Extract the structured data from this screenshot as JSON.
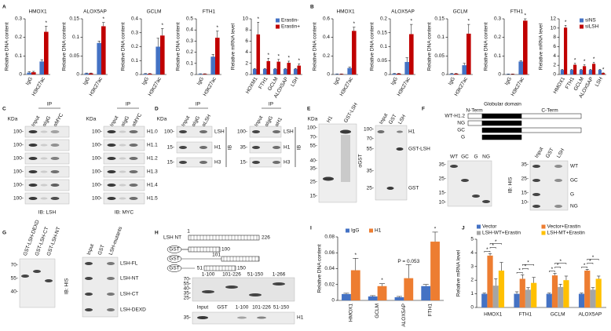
{
  "panel_letters": [
    "A",
    "B",
    "C",
    "D",
    "E",
    "F",
    "G",
    "H",
    "I",
    "J"
  ],
  "chart_data": [
    {
      "type": "bar",
      "title": "HMOX1",
      "ylabel": "Relative DNA content",
      "categories": [
        "IgG",
        "H3K27ac"
      ],
      "series": [
        {
          "color": "#4472c4",
          "values": [
            0.01,
            0.07
          ],
          "errors": [
            0.005,
            0.01
          ]
        },
        {
          "color": "#c00000",
          "values": [
            0.012,
            0.23
          ],
          "errors": [
            0.005,
            0.03
          ],
          "annotations": [
            null,
            "*"
          ]
        }
      ],
      "ylim": [
        0,
        0.3
      ],
      "yticks": [
        0,
        0.1,
        0.2,
        0.3
      ],
      "label_rotation": -60
    },
    {
      "type": "bar",
      "title": "ALOX5AP",
      "ylabel": "Relative DNA content",
      "categories": [
        "IgG",
        "H3K27ac"
      ],
      "series": [
        {
          "color": "#4472c4",
          "values": [
            0.003,
            0.085
          ],
          "errors": [
            0.001,
            0.005
          ]
        },
        {
          "color": "#c00000",
          "values": [
            0.003,
            0.13
          ],
          "errors": [
            0.001,
            0.01
          ],
          "annotations": [
            null,
            "*"
          ]
        }
      ],
      "ylim": [
        0,
        0.15
      ],
      "yticks": [
        0,
        0.05,
        0.1,
        0.15
      ],
      "label_rotation": -60
    },
    {
      "type": "bar",
      "title": "GCLM",
      "ylabel": "Relative DNA content",
      "categories": [
        "IgG",
        "H3K27ac"
      ],
      "series": [
        {
          "color": "#4472c4",
          "values": [
            0.005,
            0.2
          ],
          "errors": [
            0.002,
            0.06
          ]
        },
        {
          "color": "#c00000",
          "values": [
            0.005,
            0.28
          ],
          "errors": [
            0.002,
            0.05
          ],
          "annotations": [
            null,
            "*"
          ]
        }
      ],
      "ylim": [
        0,
        0.4
      ],
      "yticks": [
        0,
        0.1,
        0.2,
        0.3,
        0.4
      ],
      "label_rotation": -60
    },
    {
      "type": "bar",
      "title": "FTH1",
      "ylabel": "Relative DNA content",
      "categories": [
        "IgG",
        "H3K27ac"
      ],
      "series": [
        {
          "color": "#4472c4",
          "values": [
            0.005,
            0.16
          ],
          "errors": [
            0.002,
            0.02
          ]
        },
        {
          "color": "#c00000",
          "values": [
            0.005,
            0.33
          ],
          "errors": [
            0.002,
            0.06
          ],
          "annotations": [
            null,
            "*"
          ]
        }
      ],
      "ylim": [
        0,
        0.5
      ],
      "yticks": [
        0,
        0.1,
        0.2,
        0.3,
        0.4,
        0.5
      ],
      "label_rotation": -60
    },
    {
      "type": "bar",
      "ylabel": "Relative mRNA level",
      "categories": [
        "HOXM1",
        "FTH1",
        "GCLM",
        "ALOX5AP",
        "LSH"
      ],
      "series": [
        {
          "name": "Erastin-",
          "color": "#4472c4",
          "values": [
            1,
            1,
            1,
            1,
            1
          ],
          "errors": [
            0.1,
            0.1,
            0.1,
            0.1,
            0.1
          ]
        },
        {
          "name": "Erastin+",
          "color": "#c00000",
          "values": [
            7.2,
            2.4,
            2.3,
            2.1,
            1.6
          ],
          "errors": [
            2.2,
            0.5,
            0.4,
            0.3,
            0.3
          ],
          "annotations": [
            "*",
            "*",
            "*",
            "*",
            "*"
          ]
        }
      ],
      "ylim": [
        0,
        10
      ],
      "yticks": [
        0,
        2,
        4,
        6,
        8,
        10
      ],
      "label_rotation": -60,
      "legend": "top-right"
    },
    {
      "type": "bar",
      "title": "HMOX1",
      "ylabel": "Relative DNA content",
      "categories": [
        "IgG",
        "H3K27ac"
      ],
      "series": [
        {
          "color": "#4472c4",
          "values": [
            0.005,
            0.07
          ],
          "errors": [
            0.002,
            0.01
          ]
        },
        {
          "color": "#c00000",
          "values": [
            0.005,
            0.47
          ],
          "errors": [
            0.002,
            0.04
          ],
          "annotations": [
            null,
            "*"
          ]
        }
      ],
      "ylim": [
        0,
        0.6
      ],
      "yticks": [
        0,
        0.2,
        0.4,
        0.6
      ],
      "label_rotation": -60
    },
    {
      "type": "bar",
      "title": "ALOX5AP",
      "ylabel": "Relative DNA content",
      "categories": [
        "IgG",
        "H3K27ac"
      ],
      "series": [
        {
          "color": "#4472c4",
          "values": [
            0.003,
            0.045
          ],
          "errors": [
            0.001,
            0.015
          ]
        },
        {
          "color": "#c00000",
          "values": [
            0.003,
            0.145
          ],
          "errors": [
            0.001,
            0.035
          ],
          "annotations": [
            null,
            "*"
          ]
        }
      ],
      "ylim": [
        0,
        0.2
      ],
      "yticks": [
        0,
        0.05,
        0.1,
        0.15,
        0.2
      ],
      "label_rotation": -60
    },
    {
      "type": "bar",
      "title": "GCLM",
      "ylabel": "Relative DNA content",
      "categories": [
        "IgG",
        "H3K27ac"
      ],
      "series": [
        {
          "color": "#4472c4",
          "values": [
            0.002,
            0.025
          ],
          "errors": [
            0.001,
            0.005
          ]
        },
        {
          "color": "#c00000",
          "values": [
            0.002,
            0.11
          ],
          "errors": [
            0.001,
            0.025
          ],
          "annotations": [
            null,
            "*"
          ]
        }
      ],
      "ylim": [
        0,
        0.15
      ],
      "yticks": [
        0,
        0.05,
        0.1,
        0.15
      ],
      "label_rotation": -60
    },
    {
      "type": "bar",
      "title": "FTH1",
      "ylabel": "Relative DNA content",
      "categories": [
        "IgG",
        "H3K27ac"
      ],
      "series": [
        {
          "color": "#4472c4",
          "values": [
            0.002,
            0.07
          ],
          "errors": [
            0.001,
            0.005
          ]
        },
        {
          "color": "#c00000",
          "values": [
            0.002,
            0.29
          ],
          "errors": [
            0.001,
            0.01
          ],
          "annotations": [
            null,
            "*"
          ]
        }
      ],
      "ylim": [
        0,
        0.3
      ],
      "yticks": [
        0,
        0.1,
        0.2,
        0.3
      ],
      "label_rotation": -60
    },
    {
      "type": "bar",
      "ylabel": "Relative mRNA level",
      "categories": [
        "HMOX1",
        "FTH1",
        "GCLM",
        "ALOX5AP",
        "LSH"
      ],
      "series": [
        {
          "name": "siNS",
          "color": "#4472c4",
          "values": [
            1,
            1,
            1,
            1,
            1
          ],
          "errors": [
            0.1,
            0.1,
            0.1,
            0.1,
            0.1
          ]
        },
        {
          "name": "siLSH",
          "color": "#c00000",
          "values": [
            10.1,
            2.1,
            1.8,
            2.3,
            0.3
          ],
          "errors": [
            0.5,
            0.3,
            0.3,
            0.3,
            0.05
          ],
          "annotations": [
            "*",
            "*",
            "*",
            "*",
            "*"
          ]
        }
      ],
      "ylim": [
        0,
        12
      ],
      "yticks": [
        0,
        2,
        4,
        6,
        8,
        10,
        12
      ],
      "label_rotation": -60,
      "legend": "top-right"
    },
    {
      "type": "bar",
      "ylabel": "Relative DNA content",
      "categories": [
        "HMOX1",
        "GCLM",
        "ALOX5AP",
        "FTH1"
      ],
      "series": [
        {
          "name": "IgG",
          "color": "#4472c4",
          "values": [
            0.008,
            0.005,
            0.004,
            0.018
          ],
          "errors": [
            0.001,
            0.001,
            0.001,
            0.002
          ]
        },
        {
          "name": "H1",
          "color": "#ed7d31",
          "values": [
            0.038,
            0.018,
            0.028,
            0.074
          ],
          "errors": [
            0.015,
            0.003,
            0.017,
            0.012
          ],
          "annotations": [
            "*",
            "*",
            "P = 0.053",
            "*"
          ]
        }
      ],
      "ylim": [
        0,
        0.08
      ],
      "yticks": [
        0,
        0.02,
        0.04,
        0.06,
        0.08
      ],
      "label_rotation": -90,
      "legend": "top-left"
    },
    {
      "type": "bar",
      "ylabel": "Relative mRNA level",
      "categories": [
        "HMOX1",
        "FTH1",
        "GCLM",
        "ALOX5AP"
      ],
      "series": [
        {
          "name": "Vector",
          "color": "#4472c4",
          "values": [
            1,
            1,
            1,
            1
          ],
          "errors": [
            0.05,
            0.15,
            0.05,
            0.05
          ]
        },
        {
          "name": "Vector+Erastin",
          "color": "#ed7d31",
          "values": [
            3.8,
            2.1,
            2.35,
            2.7
          ],
          "errors": [
            0.15,
            0.3,
            0.15,
            0.1
          ]
        },
        {
          "name": "LSH-WT+Erastin",
          "color": "#a5a5a5",
          "values": [
            1.6,
            1.3,
            1.5,
            1.3
          ],
          "errors": [
            0.5,
            0.15,
            0.2,
            0.15
          ]
        },
        {
          "name": "LSH-MT+Erastin",
          "color": "#ffc000",
          "values": [
            2.7,
            1.8,
            2.0,
            2.1
          ],
          "errors": [
            0.6,
            0.4,
            0.3,
            0.2
          ]
        }
      ],
      "ylim": [
        0,
        5
      ],
      "yticks": [
        0,
        1,
        2,
        3,
        4,
        5
      ],
      "label_rotation": 0,
      "legend": "top",
      "bracket_label": "*"
    }
  ],
  "blots": {
    "C": {
      "kda": "KDa",
      "ip": "IP",
      "lanes_left": [
        "Input",
        "αIgG",
        "αMYC"
      ],
      "lanes_right": [
        "Input",
        "αIgG",
        "αMYC"
      ],
      "markers": [
        "100-",
        "100-",
        "100-",
        "100-",
        "100-",
        "100-"
      ],
      "rows": [
        "H1.0",
        "H1.1",
        "H1.2",
        "H1.3",
        "H1.4",
        "H1.5"
      ],
      "ib_left": "IB: LSH",
      "ib_right": "IB: MYC"
    },
    "D": {
      "kda": "KDa",
      "ip": "IP",
      "lanes_left": [
        "Input",
        "αIgG",
        "αLSH"
      ],
      "lanes_right": [
        "Input",
        "αIgG",
        "αH1"
      ],
      "markers_left": [
        "100-",
        "15-",
        "15-"
      ],
      "markers_right": [
        "100-",
        "35-",
        "15-"
      ],
      "labels": [
        "LSH",
        "H1",
        "H3"
      ],
      "ib": "IB"
    },
    "E": {
      "kda": "KDa",
      "lanes_left": [
        "H1",
        "GST-LSH"
      ],
      "markers_left": [
        "100-",
        "70-",
        "55-",
        "40-",
        "35-",
        "25-",
        "15-"
      ],
      "antibody": "αGST",
      "lanes_right": [
        "Input",
        "GST",
        "LSH"
      ],
      "markers_right": [
        "100-",
        "70-",
        "55-",
        "35-",
        "25-"
      ],
      "labels": [
        "H1",
        "GST-LSH",
        "GST"
      ]
    },
    "F": {
      "domains": [
        "N-Term",
        "Globular domain",
        "C-Term"
      ],
      "constructs": [
        "WT-H1.2",
        "NG",
        "GC",
        "G"
      ],
      "lanes_left": [
        "WT",
        "GC",
        "G",
        "NG"
      ],
      "markers_left": [
        "35-",
        "25-",
        "15-",
        "10-"
      ],
      "ib": "IB: HIS",
      "lanes_right": [
        "Input",
        "GST",
        "LSH"
      ],
      "markers_right": [
        "35-",
        "25-",
        "15-",
        "10-"
      ],
      "labels": [
        "WT",
        "GC",
        "G",
        "NG"
      ]
    },
    "G": {
      "lanes_left": [
        "GST-LSH-DEXD",
        "GST-LSH-CT",
        "GST-LSH-NT"
      ],
      "markers_left": [
        "70-",
        "55-",
        "40-"
      ],
      "ib": "IB: HIS",
      "lanes_right": [
        "Input",
        "GST",
        "LSH-mutants"
      ],
      "labels": [
        "LSH-FL",
        "LSH-NT",
        "LSH-CT",
        "LSH-DEXD"
      ]
    },
    "H": {
      "construct_title": "LSH NT",
      "gst": "GST",
      "residues": [
        "1",
        "226",
        "100",
        "101",
        "51",
        "150"
      ],
      "lanes_top": [
        "1-100",
        "101-226",
        "51-150",
        "1-266"
      ],
      "markers_top": [
        "70-",
        "55-",
        "40-",
        "35-",
        "25-"
      ],
      "lanes_bottom": [
        "Input",
        "GST",
        "1-100",
        "101-226",
        "51-150"
      ],
      "markers_bottom": [
        "35-"
      ],
      "labels": [
        "H1"
      ]
    }
  }
}
